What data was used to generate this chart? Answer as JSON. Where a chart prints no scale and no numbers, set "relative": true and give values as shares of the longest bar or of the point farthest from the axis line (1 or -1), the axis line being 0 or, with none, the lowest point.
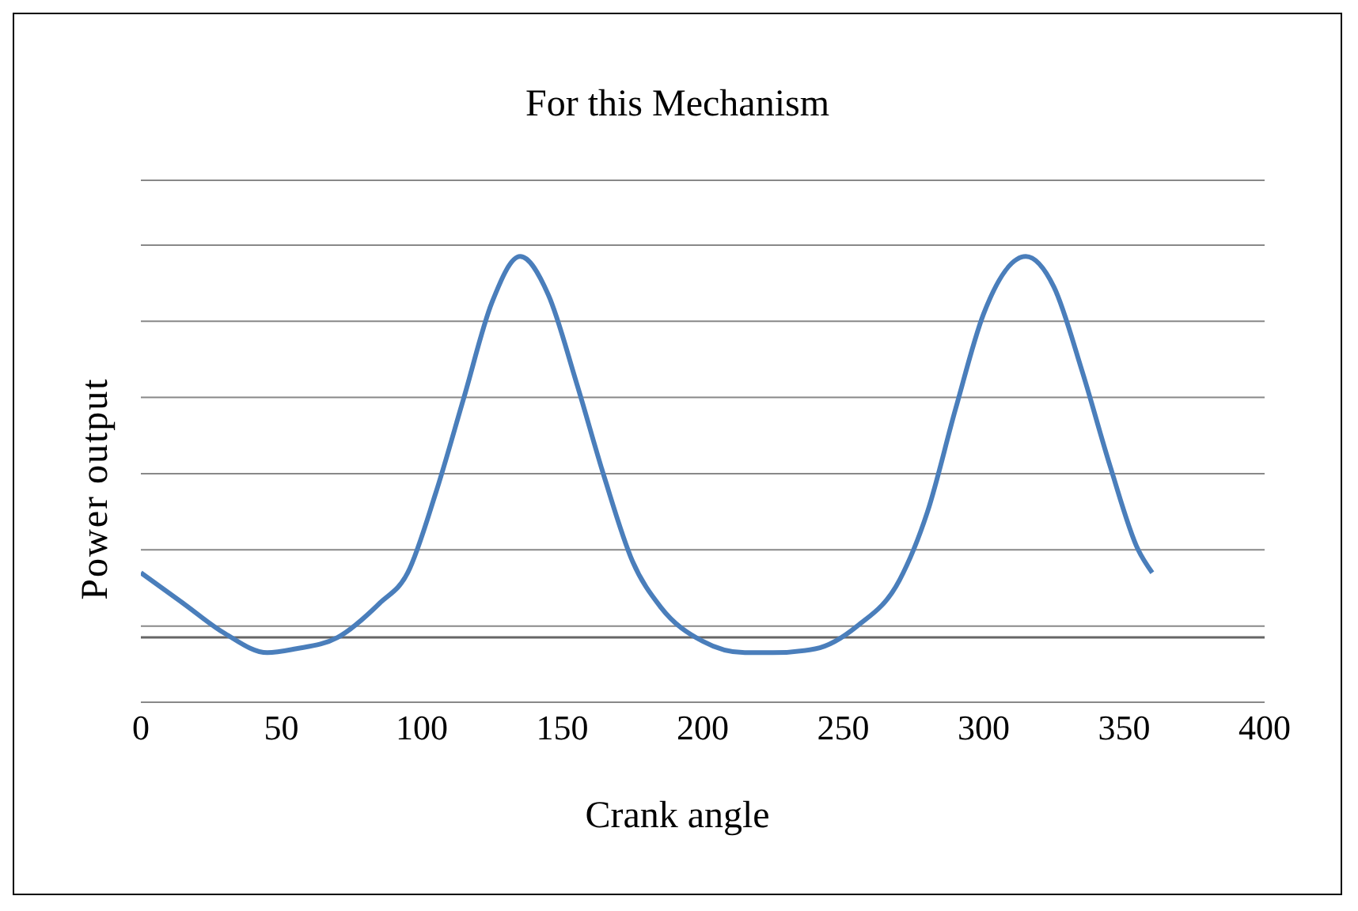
{
  "chart_data": {
    "type": "line",
    "title": "For this Mechanism",
    "xlabel": "Crank angle",
    "ylabel": "Power output",
    "relative": true,
    "grid": "y",
    "marker": "none",
    "line_style": "solid",
    "xlim": [
      0,
      400
    ],
    "xticks": [
      0,
      50,
      100,
      150,
      200,
      250,
      300,
      350,
      400
    ],
    "x": [
      0,
      15,
      30,
      45,
      55,
      70,
      85,
      95,
      105,
      115,
      125,
      135,
      145,
      155,
      165,
      175,
      185,
      200,
      215,
      225,
      240,
      255,
      270,
      280,
      290,
      300,
      315,
      325,
      335,
      345,
      355,
      360
    ],
    "series": [
      {
        "color": "#4a7ebb",
        "values": [
          0.17,
          0.09,
          0.01,
          -0.04,
          -0.03,
          0,
          0.09,
          0.17,
          0.38,
          0.63,
          0.88,
          1,
          0.9,
          0.67,
          0.42,
          0.2,
          0.08,
          -0.01,
          -0.04,
          -0.04,
          -0.03,
          0.03,
          0.15,
          0.33,
          0.6,
          0.85,
          1,
          0.92,
          0.7,
          0.45,
          0.23,
          0.17
        ]
      }
    ]
  }
}
